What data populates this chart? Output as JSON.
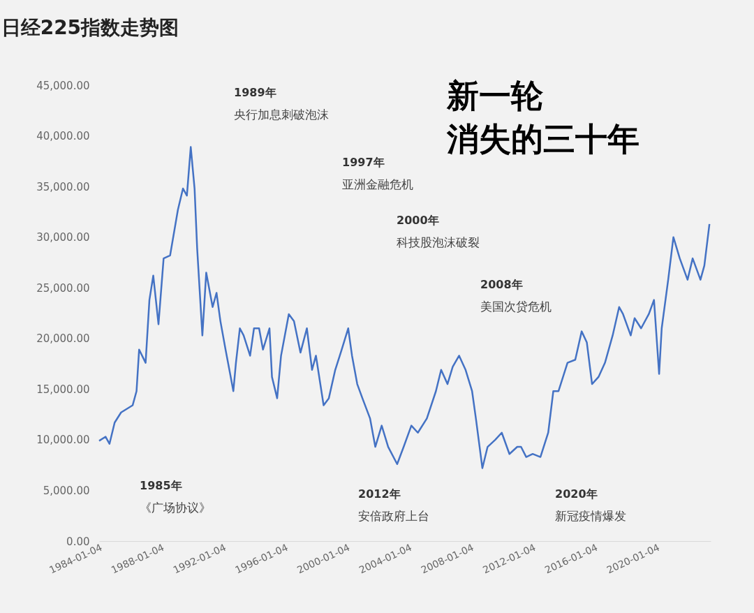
{
  "chart_data": {
    "type": "line",
    "title": "日经225指数走势图",
    "x": [
      "1984-01",
      "1984-06",
      "1984-09",
      "1985-01",
      "1985-06",
      "1986-03",
      "1986-06",
      "1986-08",
      "1987-01",
      "1987-04",
      "1987-07",
      "1987-11",
      "1988-03",
      "1988-08",
      "1989-02",
      "1989-06",
      "1989-09",
      "1989-12",
      "1990-03",
      "1990-05",
      "1990-09",
      "1990-12",
      "1991-02",
      "1991-05",
      "1991-08",
      "1991-11",
      "1992-03",
      "1992-07",
      "1992-09",
      "1992-11",
      "1993-02",
      "1993-05",
      "1993-10",
      "1994-01",
      "1994-05",
      "1994-08",
      "1995-01",
      "1995-03",
      "1995-07",
      "1995-10",
      "1996-04",
      "1996-08",
      "1997-01",
      "1997-06",
      "1997-10",
      "1998-01",
      "1998-07",
      "1998-11",
      "1999-04",
      "1999-09",
      "2000-02",
      "2000-05",
      "2000-09",
      "2001-01",
      "2001-07",
      "2001-11",
      "2002-04",
      "2002-09",
      "2003-04",
      "2003-09",
      "2004-03",
      "2004-08",
      "2005-03",
      "2005-10",
      "2006-02",
      "2006-07",
      "2006-11",
      "2007-04",
      "2007-09",
      "2008-02",
      "2008-05",
      "2008-10",
      "2009-02",
      "2009-08",
      "2010-01",
      "2010-07",
      "2011-01",
      "2011-04",
      "2011-08",
      "2012-01",
      "2012-07",
      "2013-01",
      "2013-05",
      "2013-09",
      "2014-04",
      "2014-10",
      "2015-03",
      "2015-07",
      "2015-11",
      "2016-04",
      "2016-09",
      "2017-03",
      "2017-08",
      "2017-11",
      "2018-05",
      "2018-08",
      "2019-01",
      "2019-07",
      "2019-11",
      "2020-03",
      "2020-05",
      "2020-10",
      "2021-02",
      "2021-07",
      "2022-01",
      "2022-05",
      "2022-11",
      "2023-02",
      "2023-06"
    ],
    "values": [
      9900,
      10300,
      9600,
      11700,
      12700,
      13400,
      14800,
      18900,
      17600,
      23800,
      26200,
      21400,
      27900,
      28200,
      32700,
      34800,
      34100,
      38900,
      34800,
      28900,
      20300,
      26500,
      25100,
      23100,
      24500,
      21700,
      18900,
      16200,
      14800,
      17600,
      21000,
      20300,
      18300,
      21000,
      21000,
      18900,
      21000,
      16200,
      14100,
      18300,
      22400,
      21700,
      18600,
      21000,
      16900,
      18300,
      13400,
      14100,
      16900,
      18900,
      21000,
      18300,
      15500,
      14100,
      12100,
      9300,
      11400,
      9300,
      7600,
      9300,
      11400,
      10700,
      12100,
      14800,
      16900,
      15500,
      17200,
      18300,
      16900,
      14800,
      12100,
      7200,
      9300,
      10000,
      10700,
      8600,
      9300,
      9300,
      8300,
      8600,
      8300,
      10700,
      14800,
      14800,
      17600,
      17900,
      20700,
      19600,
      15500,
      16200,
      17600,
      20300,
      23100,
      22400,
      20300,
      22000,
      21000,
      22400,
      23800,
      16500,
      21000,
      25800,
      30000,
      27900,
      25800,
      27900,
      25800,
      27200,
      31300
    ],
    "color": "#4472c4",
    "xlim": [
      "1984-01-01",
      "2023-07-01"
    ],
    "xticks": [
      "1984-01-04",
      "1988-01-04",
      "1992-01-04",
      "1996-01-04",
      "2000-01-04",
      "2004-01-04",
      "2008-01-04",
      "2012-01-04",
      "2016-01-04",
      "2020-01-04"
    ],
    "ylim": [
      0,
      45000
    ],
    "yticks": [
      {
        "value": 0,
        "label": "0.00"
      },
      {
        "value": 5000,
        "label": "5,000.00"
      },
      {
        "value": 10000,
        "label": "10,000.00"
      },
      {
        "value": 15000,
        "label": "15,000.00"
      },
      {
        "value": 20000,
        "label": "20,000.00"
      },
      {
        "value": 25000,
        "label": "25,000.00"
      },
      {
        "value": 30000,
        "label": "30,000.00"
      },
      {
        "value": 35000,
        "label": "35,000.00"
      },
      {
        "value": 40000,
        "label": "40,000.00"
      },
      {
        "value": 45000,
        "label": "45,000.00"
      }
    ],
    "grid": false,
    "marker": "none",
    "line_style": "solid",
    "annotations": [
      "1985年",
      "《广场协议》",
      "1989年",
      "央行加息刺破泡沫",
      "1997年",
      "亚洲金融危机",
      "2000年",
      "科技股泡沫破裂",
      "2008年",
      "美国次贷危机",
      "2012年",
      "安倍政府上台",
      "2020年",
      "新冠疫情爆发",
      "新一轮",
      "消失的三十年"
    ]
  }
}
